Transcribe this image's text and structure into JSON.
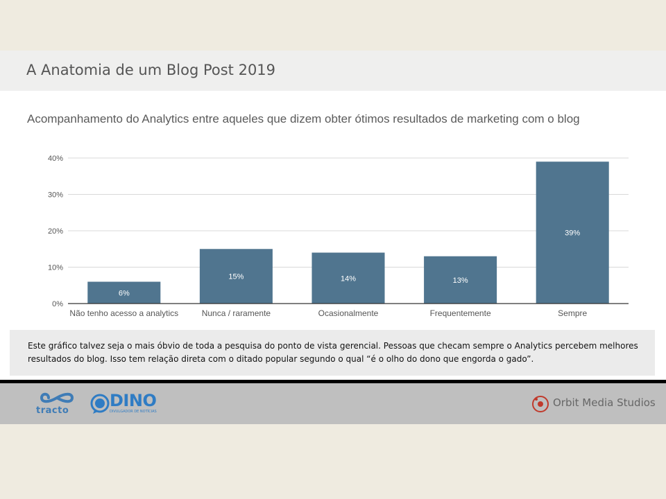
{
  "slide": {
    "title": "A Anatomia de um Blog Post 2019",
    "caption": "Este gráfico talvez seja o mais óbvio de toda a pesquisa do ponto de vista gerencial. Pessoas que checam sempre o Analytics percebem melhores resultados do blog. Isso tem relação direta com o ditado popular segundo o qual “é o olho do dono que engorda o gado”."
  },
  "chart_data": {
    "type": "bar",
    "title": "Acompanhamento do Analytics entre aqueles que dizem obter ótimos resultados de marketing com o blog",
    "categories": [
      "Não tenho acesso a analytics",
      "Nunca / raramente",
      "Ocasionalmente",
      "Frequentemente",
      "Sempre"
    ],
    "values": [
      6,
      15,
      14,
      13,
      39
    ],
    "data_labels": [
      "6%",
      "15%",
      "14%",
      "13%",
      "39%"
    ],
    "yticks": [
      "0%",
      "10%",
      "20%",
      "30%",
      "40%"
    ],
    "ylim": [
      0,
      40
    ],
    "grid": true,
    "legend": "none",
    "colors": {
      "bar": "#50758f",
      "grid": "#d9d9d9",
      "axis": "#333333",
      "label_inside": "#ffffff"
    }
  },
  "footer": {
    "logos": {
      "tracto": "tracto",
      "dino": "DINO",
      "dino_tagline": "DIVULGADOR DE NOTÍCIAS",
      "orbit": "Orbit Media Studios"
    },
    "colors": {
      "tracto": "#3f7cb6",
      "dino": "#2f7cc4",
      "orbit": "#c0392b"
    }
  }
}
